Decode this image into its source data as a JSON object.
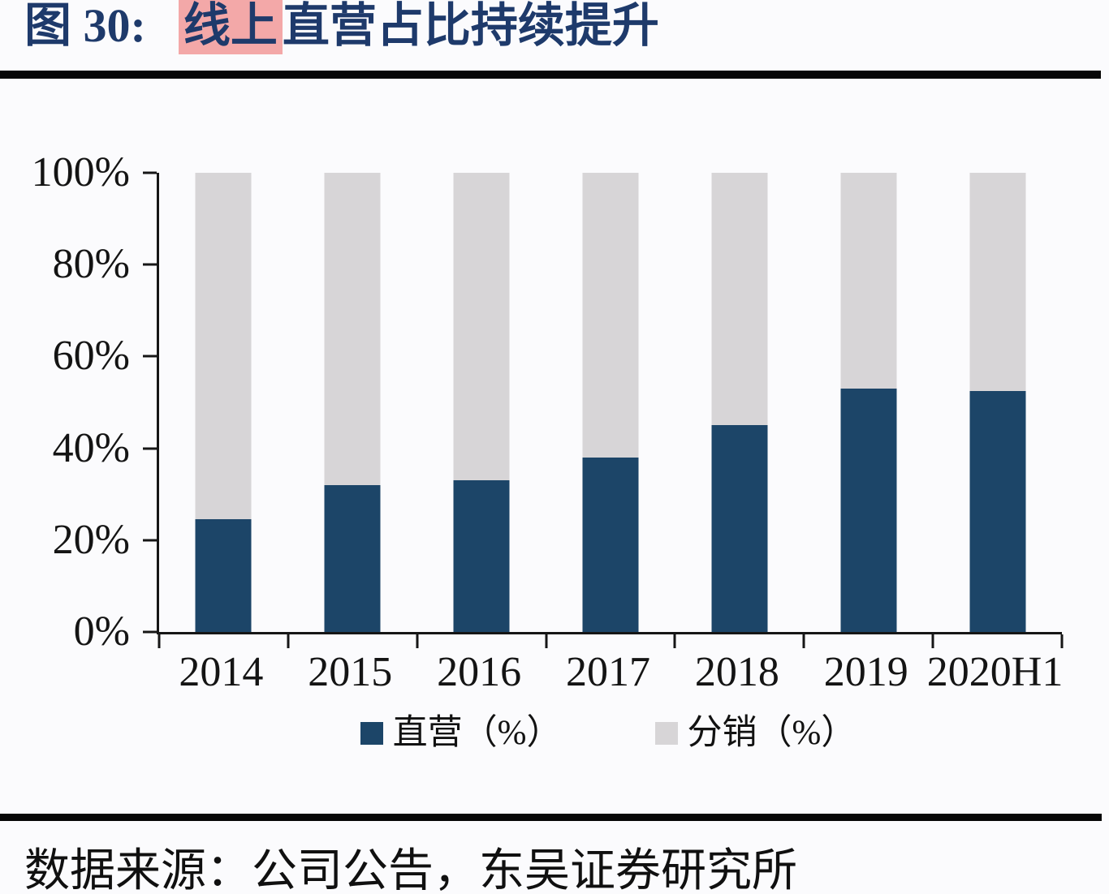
{
  "header": {
    "figure_label": "图 30:",
    "title_highlight": "线上",
    "title_rest": "直营占比持续提升",
    "title_color": "#1e3a6b",
    "highlight_color": "#f3a8a8"
  },
  "chart_data": {
    "type": "bar",
    "stacked": true,
    "title": "线上直营占比持续提升",
    "categories": [
      "2014",
      "2015",
      "2016",
      "2017",
      "2018",
      "2019",
      "2020H1"
    ],
    "series": [
      {
        "name": "直营（%）",
        "color": "#1c4568",
        "values": [
          24.5,
          32,
          33,
          38,
          45,
          53,
          52.5
        ]
      },
      {
        "name": "分销（%）",
        "color": "#d7d5d7",
        "values": [
          75.5,
          68,
          67,
          62,
          55,
          47,
          47.5
        ]
      }
    ],
    "xlabel": "",
    "ylabel": "",
    "ylim": [
      0,
      100
    ],
    "y_ticks": [
      "0%",
      "20%",
      "40%",
      "60%",
      "80%",
      "100%"
    ],
    "grid": false,
    "legend_position": "bottom"
  },
  "footer": {
    "source_text": "数据来源：公司公告，东吴证券研究所"
  }
}
